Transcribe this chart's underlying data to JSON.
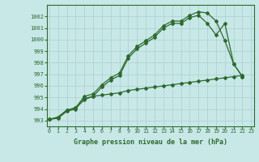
{
  "line1": [
    993.1,
    993.3,
    993.9,
    994.1,
    995.1,
    995.3,
    996.1,
    996.7,
    997.1,
    998.6,
    999.4,
    999.9,
    1000.4,
    1001.2,
    1001.6,
    1001.6,
    1002.1,
    1002.4,
    1002.3,
    1001.6,
    999.9,
    997.9,
    996.8
  ],
  "line2": [
    993.1,
    993.3,
    993.9,
    994.1,
    994.8,
    995.1,
    995.2,
    995.3,
    995.4,
    995.6,
    995.7,
    995.8,
    995.9,
    996.0,
    996.1,
    996.2,
    996.3,
    996.4,
    996.5,
    996.6,
    996.7,
    996.8,
    996.9
  ],
  "line3": [
    993.1,
    993.2,
    993.8,
    994.0,
    994.9,
    995.1,
    995.9,
    996.5,
    996.9,
    998.4,
    999.2,
    999.7,
    1000.2,
    1001.0,
    1001.4,
    1001.4,
    1001.9,
    1002.1,
    1001.4,
    1000.4,
    1001.4,
    997.9,
    996.8
  ],
  "line_color": "#2d6a2d",
  "bg_color": "#c8e8e8",
  "grid_color": "#aacfcf",
  "xlabel": "Graphe pression niveau de la mer (hPa)",
  "xticks": [
    0,
    1,
    2,
    3,
    4,
    5,
    6,
    7,
    8,
    9,
    10,
    11,
    12,
    13,
    14,
    15,
    16,
    17,
    18,
    19,
    20,
    21,
    22,
    23
  ],
  "yticks": [
    993,
    994,
    995,
    996,
    997,
    998,
    999,
    1000,
    1001,
    1002
  ],
  "ylim": [
    992.5,
    1003.0
  ],
  "xlim": [
    -0.3,
    23.3
  ]
}
